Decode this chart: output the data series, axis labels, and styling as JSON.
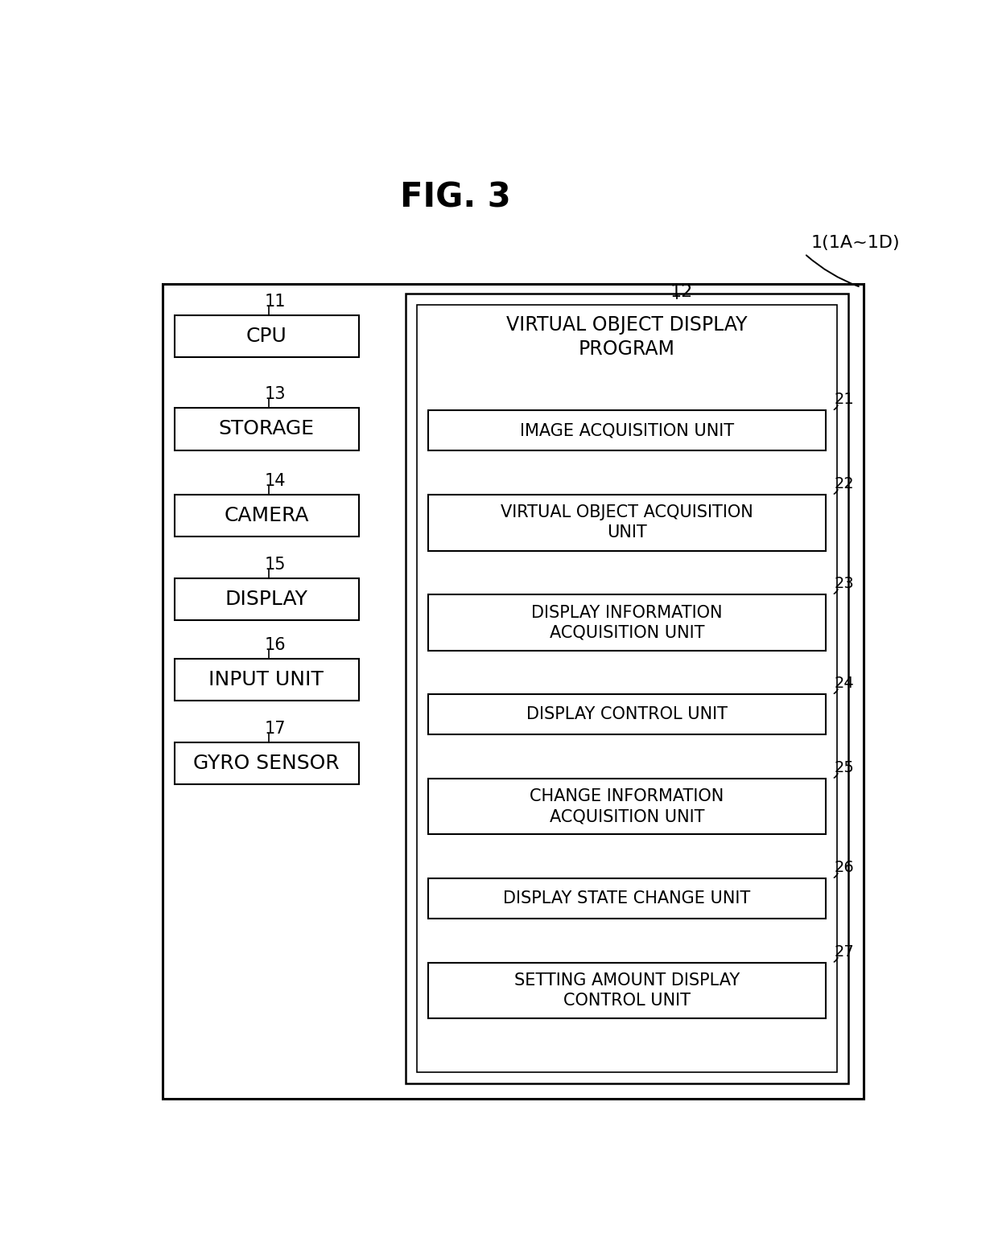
{
  "title": "FIG. 3",
  "bg_color": "#ffffff",
  "fig_label": "1(1A~1D)",
  "left_boxes": [
    {
      "label": "11",
      "text": "CPU"
    },
    {
      "label": "13",
      "text": "STORAGE"
    },
    {
      "label": "14",
      "text": "CAMERA"
    },
    {
      "label": "15",
      "text": "DISPLAY"
    },
    {
      "label": "16",
      "text": "INPUT UNIT"
    },
    {
      "label": "17",
      "text": "GYRO SENSOR"
    }
  ],
  "right_header": "VIRTUAL OBJECT DISPLAY\nPROGRAM",
  "right_boxes": [
    {
      "label": "21",
      "text": "IMAGE ACQUISITION UNIT"
    },
    {
      "label": "22",
      "text": "VIRTUAL OBJECT ACQUISITION\nUNIT"
    },
    {
      "label": "23",
      "text": "DISPLAY INFORMATION\nACQUISITION UNIT"
    },
    {
      "label": "24",
      "text": "DISPLAY CONTROL UNIT"
    },
    {
      "label": "25",
      "text": "CHANGE INFORMATION\nACQUISITION UNIT"
    },
    {
      "label": "26",
      "text": "DISPLAY STATE CHANGE UNIT"
    },
    {
      "label": "27",
      "text": "SETTING AMOUNT DISPLAY\nCONTROL UNIT"
    }
  ]
}
